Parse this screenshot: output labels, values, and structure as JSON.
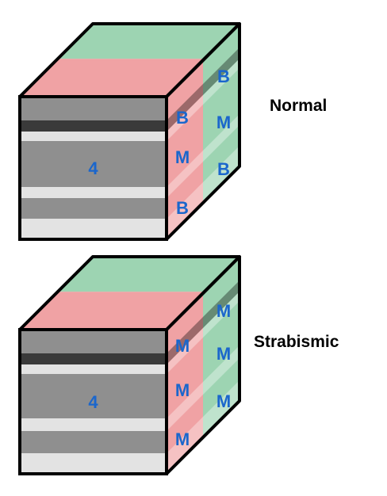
{
  "cubes": [
    {
      "title": "Normal",
      "front_label": "4",
      "left_column": [
        "B",
        "M",
        "B"
      ],
      "right_column": [
        "B",
        "M",
        "B"
      ]
    },
    {
      "title": "Strabismic",
      "front_label": "4",
      "left_column": [
        "M",
        "M",
        "M"
      ],
      "right_column": [
        "M",
        "M",
        "M"
      ]
    }
  ],
  "colors": {
    "red_face": "#f0a2a4",
    "green_face": "#9dd4b2",
    "outline": "#000000",
    "label_blue": "#1a66cc",
    "gray_mid": "#8f8f8f",
    "gray_dark": "#3a3a3a",
    "gray_light": "#e3e3e3"
  }
}
